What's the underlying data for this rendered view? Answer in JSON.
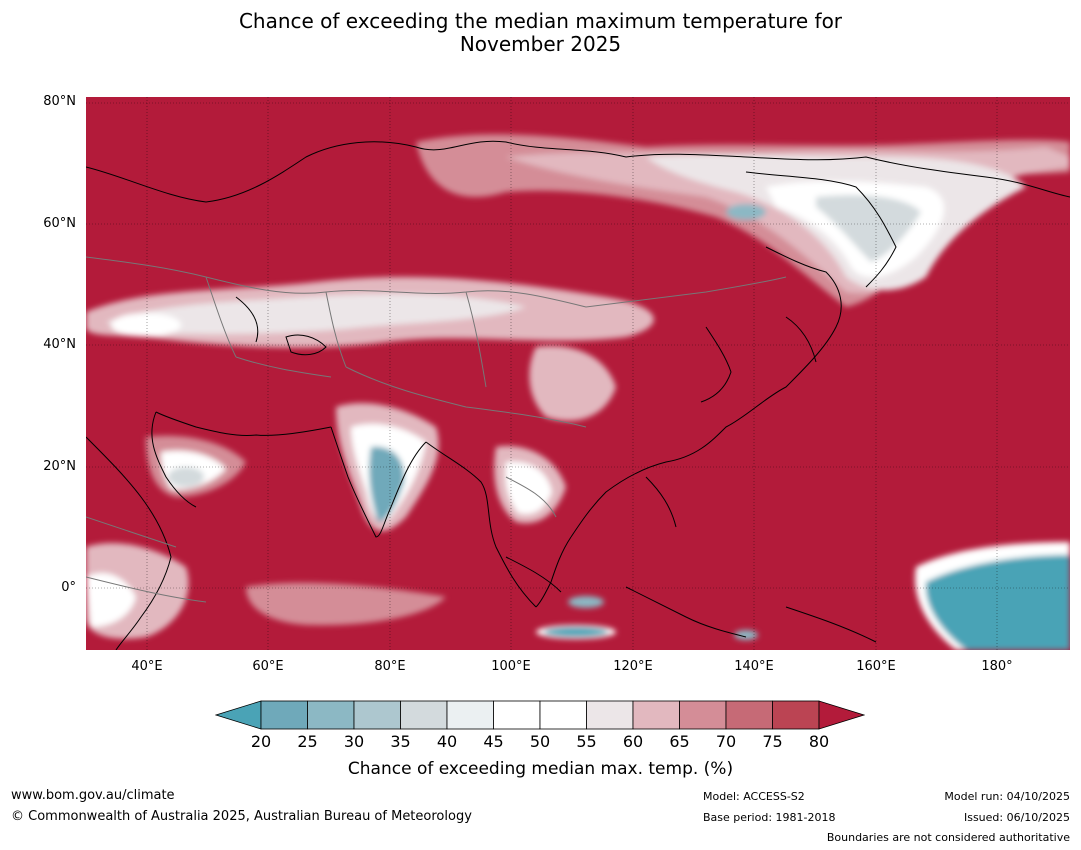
{
  "title_line1": "Chance of exceeding the median maximum temperature for",
  "title_line2": "November 2025",
  "lat_labels": [
    "80°N",
    "60°N",
    "40°N",
    "20°N",
    "0°"
  ],
  "lon_labels": [
    "40°E",
    "60°E",
    "80°E",
    "100°E",
    "120°E",
    "140°E",
    "160°E",
    "180°"
  ],
  "colorbar": {
    "ticks": [
      "20",
      "25",
      "30",
      "35",
      "40",
      "45",
      "50",
      "55",
      "60",
      "65",
      "70",
      "75",
      "80"
    ],
    "colors": [
      "#4aa3b6",
      "#6fa9ba",
      "#8cb8c4",
      "#adc7cf",
      "#d3dadd",
      "#ebf0f2",
      "#ffffff",
      "#ffffff",
      "#ece6e8",
      "#e2b8bf",
      "#d48d97",
      "#c66a76",
      "#bb4453",
      "#b31b3a"
    ],
    "title": "Chance of exceeding median max. temp. (%)"
  },
  "footer": {
    "website": "www.bom.gov.au/climate",
    "copyright": "© Commonwealth of Australia 2025, Australian Bureau of Meteorology",
    "model": "Model: ACCESS-S2",
    "base_period": "Base period: 1981-2018",
    "model_run": "Model run: 04/10/2025",
    "issued": "Issued: 06/10/2025",
    "disclaimer": "Boundaries are not considered authoritative"
  }
}
